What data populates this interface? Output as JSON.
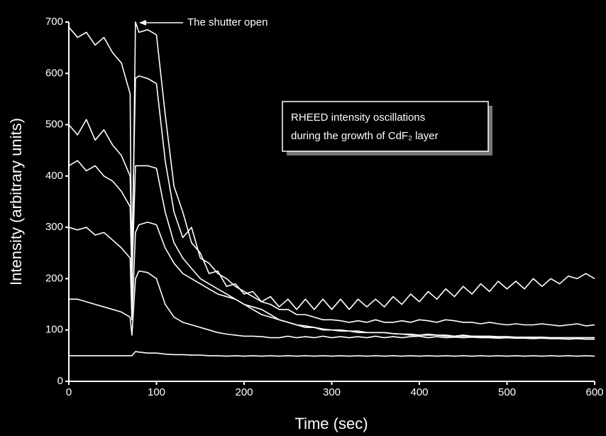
{
  "chart_data": {
    "type": "line",
    "xlabel": "Time (sec)",
    "ylabel": "Intensity (arbitrary units)",
    "annotation": "The shutter open",
    "note_lines": [
      "RHEED intensity oscillations",
      "during the growth of CdF₂ layer"
    ],
    "xlim": [
      0,
      600
    ],
    "ylim": [
      0,
      700
    ],
    "xticks": [
      0,
      100,
      200,
      300,
      400,
      500,
      600
    ],
    "yticks": [
      0,
      100,
      200,
      300,
      400,
      500,
      600,
      700
    ],
    "x": [
      0,
      10,
      20,
      30,
      40,
      50,
      60,
      70,
      72,
      76,
      80,
      90,
      100,
      110,
      120,
      130,
      140,
      150,
      160,
      170,
      180,
      190,
      200,
      210,
      220,
      230,
      240,
      250,
      260,
      270,
      280,
      290,
      300,
      310,
      320,
      330,
      340,
      350,
      360,
      370,
      380,
      390,
      400,
      410,
      420,
      430,
      440,
      450,
      460,
      470,
      480,
      490,
      500,
      510,
      520,
      530,
      540,
      550,
      560,
      570,
      580,
      590,
      600
    ],
    "series": [
      {
        "color": "#ffffff",
        "values": [
          690,
          670,
          680,
          655,
          670,
          640,
          620,
          560,
          150,
          700,
          680,
          685,
          675,
          520,
          380,
          330,
          270,
          250,
          210,
          215,
          185,
          190,
          170,
          175,
          155,
          165,
          145,
          160,
          140,
          160,
          140,
          160,
          140,
          160,
          140,
          160,
          145,
          160,
          145,
          165,
          150,
          170,
          155,
          175,
          160,
          180,
          165,
          185,
          170,
          190,
          175,
          195,
          180,
          195,
          180,
          200,
          185,
          200,
          190,
          205,
          200,
          210,
          200
        ]
      },
      {
        "color": "#ffffff",
        "values": [
          500,
          480,
          510,
          470,
          490,
          460,
          440,
          400,
          250,
          590,
          595,
          590,
          580,
          430,
          330,
          280,
          300,
          240,
          230,
          210,
          200,
          185,
          175,
          165,
          155,
          150,
          140,
          140,
          130,
          130,
          125,
          120,
          120,
          118,
          115,
          118,
          115,
          120,
          115,
          115,
          118,
          115,
          120,
          118,
          115,
          120,
          118,
          115,
          115,
          112,
          115,
          112,
          110,
          112,
          110,
          110,
          112,
          110,
          108,
          110,
          112,
          108,
          110
        ]
      },
      {
        "color": "#ffffff",
        "values": [
          420,
          430,
          410,
          420,
          400,
          390,
          370,
          340,
          200,
          420,
          420,
          420,
          415,
          330,
          270,
          240,
          220,
          200,
          190,
          180,
          170,
          160,
          150,
          140,
          130,
          125,
          120,
          115,
          110,
          105,
          105,
          100,
          100,
          98,
          98,
          95,
          95,
          95,
          95,
          93,
          92,
          92,
          90,
          92,
          90,
          90,
          88,
          90,
          88,
          88,
          88,
          87,
          87,
          86,
          86,
          86,
          86,
          85,
          85,
          85,
          85,
          85,
          85
        ]
      },
      {
        "color": "#ffffff",
        "values": [
          300,
          295,
          300,
          285,
          290,
          275,
          260,
          240,
          120,
          290,
          305,
          310,
          305,
          260,
          230,
          210,
          200,
          190,
          180,
          170,
          165,
          160,
          150,
          145,
          140,
          130,
          120,
          115,
          110,
          108,
          105,
          102,
          100,
          100,
          98,
          98,
          95,
          95,
          95,
          93,
          92,
          90,
          90,
          90,
          90,
          88,
          88,
          88,
          88,
          87,
          87,
          86,
          86,
          86,
          86,
          85,
          85,
          85,
          85,
          85,
          85,
          85,
          85
        ]
      },
      {
        "color": "#ffffff",
        "values": [
          160,
          160,
          155,
          150,
          145,
          140,
          135,
          125,
          90,
          200,
          215,
          212,
          200,
          150,
          125,
          115,
          110,
          105,
          100,
          95,
          92,
          90,
          88,
          88,
          87,
          85,
          85,
          88,
          85,
          87,
          85,
          88,
          85,
          87,
          85,
          87,
          85,
          88,
          85,
          87,
          85,
          87,
          88,
          85,
          87,
          85,
          86,
          85,
          86,
          85,
          85,
          84,
          85,
          84,
          84,
          83,
          84,
          83,
          83,
          82,
          83,
          82,
          82
        ]
      },
      {
        "color": "#ffffff",
        "values": [
          50,
          50,
          50,
          50,
          50,
          50,
          50,
          50,
          50,
          58,
          57,
          55,
          55,
          53,
          52,
          52,
          51,
          51,
          50,
          50,
          49,
          50,
          49,
          50,
          49,
          50,
          49,
          50,
          49,
          50,
          49,
          50,
          49,
          50,
          49,
          50,
          49,
          50,
          49,
          50,
          49,
          50,
          49,
          50,
          49,
          50,
          49,
          50,
          49,
          50,
          49,
          50,
          49,
          50,
          49,
          50,
          49,
          50,
          49,
          50,
          49,
          50,
          49
        ]
      }
    ]
  }
}
